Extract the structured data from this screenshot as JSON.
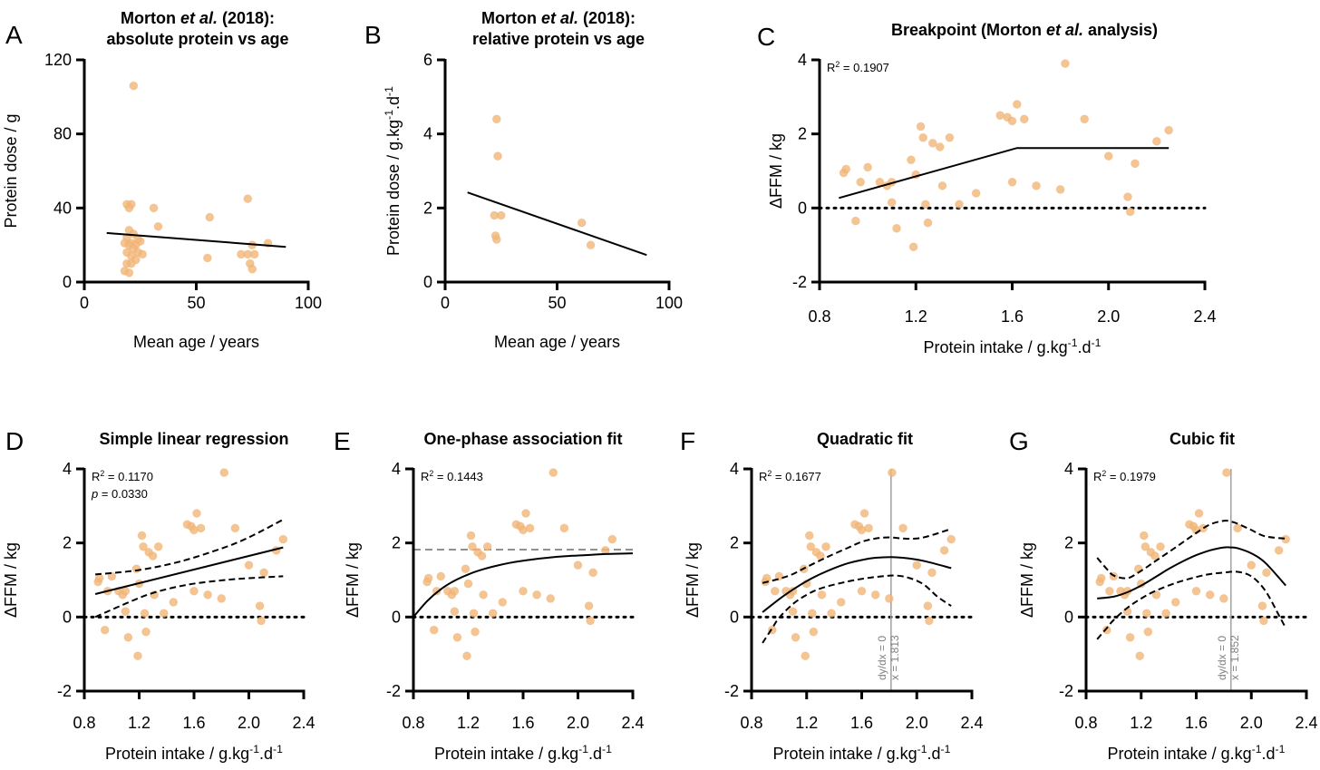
{
  "panels": [
    {
      "letter": "A",
      "title_lines": [
        [
          {
            "t": "Morton "
          },
          {
            "t": "et al.",
            "i": true
          },
          {
            "t": " (2018):"
          }
        ],
        [
          {
            "t": "absolute protein vs age"
          }
        ]
      ],
      "xlabel": [
        {
          "t": "Mean age / years"
        }
      ],
      "ylabel": [
        {
          "t": "Protein dose / g"
        }
      ],
      "annotations": []
    },
    {
      "letter": "B",
      "title_lines": [
        [
          {
            "t": "Morton "
          },
          {
            "t": "et al.",
            "i": true
          },
          {
            "t": " (2018):"
          }
        ],
        [
          {
            "t": "relative protein vs age"
          }
        ]
      ],
      "xlabel": [
        {
          "t": "Mean age / years"
        }
      ],
      "ylabel": [
        {
          "t": "Protein dose / g.kg"
        },
        {
          "t": "-1",
          "sup": true
        },
        {
          "t": ".d"
        },
        {
          "t": "-1",
          "sup": true
        }
      ],
      "annotations": []
    },
    {
      "letter": "C",
      "title_lines": [
        [
          {
            "t": "Breakpoint (Morton "
          },
          {
            "t": "et al.",
            "i": true
          },
          {
            "t": " analysis)"
          }
        ]
      ],
      "xlabel": [
        {
          "t": "Protein intake / g.kg"
        },
        {
          "t": "-1",
          "sup": true
        },
        {
          "t": ".d"
        },
        {
          "t": "-1",
          "sup": true
        }
      ],
      "ylabel": [
        {
          "t": "ΔFFM / kg"
        }
      ],
      "annotations": [
        [
          {
            "t": "R"
          },
          {
            "t": "2",
            "sup": true
          },
          {
            "t": " = 0.1907"
          }
        ]
      ]
    },
    {
      "letter": "D",
      "title_lines": [
        [
          {
            "t": "Simple linear regression"
          }
        ]
      ],
      "xlabel": [
        {
          "t": "Protein intake / g.kg"
        },
        {
          "t": "-1",
          "sup": true
        },
        {
          "t": ".d"
        },
        {
          "t": "-1",
          "sup": true
        }
      ],
      "ylabel": [
        {
          "t": "ΔFFM / kg"
        }
      ],
      "annotations": [
        [
          {
            "t": "R"
          },
          {
            "t": "2",
            "sup": true
          },
          {
            "t": " = 0.1170"
          }
        ],
        [
          {
            "t": "p",
            "i": true
          },
          {
            "t": " = 0.0330"
          }
        ]
      ]
    },
    {
      "letter": "E",
      "title_lines": [
        [
          {
            "t": "One-phase association fit"
          }
        ]
      ],
      "xlabel": [
        {
          "t": "Protein intake / g.kg"
        },
        {
          "t": "-1",
          "sup": true
        },
        {
          "t": ".d"
        },
        {
          "t": "-1",
          "sup": true
        }
      ],
      "ylabel": [
        {
          "t": "ΔFFM / kg"
        }
      ],
      "annotations": [
        [
          {
            "t": "R"
          },
          {
            "t": "2",
            "sup": true
          },
          {
            "t": " = 0.1443"
          }
        ]
      ]
    },
    {
      "letter": "F",
      "title_lines": [
        [
          {
            "t": "Quadratic fit"
          }
        ]
      ],
      "xlabel": [
        {
          "t": "Protein intake / g.kg"
        },
        {
          "t": "-1",
          "sup": true
        },
        {
          "t": ".d"
        },
        {
          "t": "-1",
          "sup": true
        }
      ],
      "ylabel": [
        {
          "t": "ΔFFM / kg"
        }
      ],
      "annotations": [
        [
          {
            "t": "R"
          },
          {
            "t": "2",
            "sup": true
          },
          {
            "t": " = 0.1677"
          }
        ]
      ],
      "vline_labels": [
        "dy/dx = 0",
        "x = 1.813"
      ]
    },
    {
      "letter": "G",
      "title_lines": [
        [
          {
            "t": "Cubic fit"
          }
        ]
      ],
      "xlabel": [
        {
          "t": "Protein intake / g.kg"
        },
        {
          "t": "-1",
          "sup": true
        },
        {
          "t": ".d"
        },
        {
          "t": "-1",
          "sup": true
        }
      ],
      "ylabel": [
        {
          "t": "ΔFFM / kg"
        }
      ],
      "annotations": [
        [
          {
            "t": "R"
          },
          {
            "t": "2",
            "sup": true
          },
          {
            "t": " = 0.1979"
          }
        ]
      ],
      "vline_labels": [
        "dy/dx = 0",
        "x = 1.852"
      ]
    }
  ],
  "chart_data": [
    {
      "panel": "A",
      "type": "scatter",
      "xlim": [
        0,
        100
      ],
      "xticks": [
        0,
        50,
        100
      ],
      "ylim": [
        0,
        120
      ],
      "yticks": [
        0,
        40,
        80,
        120
      ],
      "points": [
        [
          22,
          106
        ],
        [
          19,
          42
        ],
        [
          21,
          42
        ],
        [
          20,
          40
        ],
        [
          31,
          40
        ],
        [
          33,
          30
        ],
        [
          56,
          35
        ],
        [
          73,
          45
        ],
        [
          20,
          28
        ],
        [
          22,
          26
        ],
        [
          19,
          24
        ],
        [
          24,
          23
        ],
        [
          18,
          21
        ],
        [
          21,
          21
        ],
        [
          23,
          20
        ],
        [
          25,
          22
        ],
        [
          20,
          20
        ],
        [
          22,
          18
        ],
        [
          19,
          16
        ],
        [
          24,
          16
        ],
        [
          26,
          15
        ],
        [
          21,
          14
        ],
        [
          23,
          12
        ],
        [
          19,
          10
        ],
        [
          21,
          10
        ],
        [
          18,
          6
        ],
        [
          20,
          5
        ],
        [
          55,
          13
        ],
        [
          70,
          15
        ],
        [
          73,
          15
        ],
        [
          75,
          20
        ],
        [
          76,
          15
        ],
        [
          82,
          21
        ],
        [
          74,
          10
        ],
        [
          75,
          7
        ]
      ],
      "fit": {
        "kind": "linear",
        "x": [
          10,
          90
        ],
        "y": [
          26.5,
          19
        ]
      }
    },
    {
      "panel": "B",
      "type": "scatter",
      "xlim": [
        0,
        100
      ],
      "xticks": [
        0,
        50,
        100
      ],
      "ylim": [
        0,
        6
      ],
      "yticks": [
        0,
        2,
        4,
        6
      ],
      "points": [
        [
          23,
          4.4
        ],
        [
          23.5,
          3.4
        ],
        [
          22,
          1.8
        ],
        [
          25,
          1.8
        ],
        [
          22.5,
          1.25
        ],
        [
          23,
          1.15
        ],
        [
          61,
          1.6
        ],
        [
          65,
          1.0
        ]
      ],
      "fit": {
        "kind": "linear",
        "x": [
          10,
          90
        ],
        "y": [
          2.42,
          0.73
        ]
      }
    },
    {
      "panel": "C",
      "type": "scatter",
      "xlim": [
        0.8,
        2.4
      ],
      "xticks": [
        0.8,
        1.2,
        1.6,
        2.0,
        2.4
      ],
      "ylim": [
        -2,
        4
      ],
      "yticks": [
        -2,
        0,
        2,
        4
      ],
      "zero_line": true,
      "fit": {
        "kind": "breakpoint",
        "x": [
          0.88,
          1.62,
          2.25
        ],
        "y": [
          0.27,
          1.62,
          1.62
        ]
      },
      "r2": 0.1907
    },
    {
      "panel": "D",
      "type": "scatter",
      "xlim": [
        0.8,
        2.4
      ],
      "xticks": [
        0.8,
        1.2,
        1.6,
        2.0,
        2.4
      ],
      "ylim": [
        -2,
        4
      ],
      "yticks": [
        -2,
        0,
        2,
        4
      ],
      "zero_line": true,
      "fit": {
        "kind": "linear",
        "x": [
          0.88,
          2.25
        ],
        "y": [
          0.62,
          1.88
        ]
      },
      "ci_upper": {
        "x": [
          0.88,
          1.2,
          1.5,
          1.8,
          2.0,
          2.25
        ],
        "y": [
          1.15,
          1.27,
          1.5,
          1.85,
          2.15,
          2.63
        ]
      },
      "ci_lower": {
        "x": [
          0.88,
          1.1,
          1.3,
          1.55,
          1.8,
          2.0,
          2.25
        ],
        "y": [
          0.0,
          0.36,
          0.65,
          0.87,
          0.99,
          1.05,
          1.1
        ]
      },
      "r2": 0.117,
      "p": 0.033
    },
    {
      "panel": "E",
      "type": "scatter",
      "xlim": [
        0.8,
        2.4
      ],
      "xticks": [
        0.8,
        1.2,
        1.6,
        2.0,
        2.4
      ],
      "ylim": [
        -2,
        4
      ],
      "yticks": [
        -2,
        0,
        2,
        4
      ],
      "zero_line": true,
      "plateau": 1.82,
      "fit": {
        "kind": "one-phase",
        "x": [
          0.8,
          0.9,
          1.0,
          1.1,
          1.2,
          1.3,
          1.4,
          1.5,
          1.6,
          1.7,
          1.8,
          1.9,
          2.0,
          2.1,
          2.2,
          2.3,
          2.4
        ],
        "y": [
          0.0,
          0.43,
          0.75,
          0.98,
          1.15,
          1.28,
          1.38,
          1.46,
          1.52,
          1.57,
          1.61,
          1.64,
          1.66,
          1.68,
          1.7,
          1.71,
          1.72
        ]
      },
      "r2": 0.1443
    },
    {
      "panel": "F",
      "type": "scatter",
      "xlim": [
        0.8,
        2.4
      ],
      "xticks": [
        0.8,
        1.2,
        1.6,
        2.0,
        2.4
      ],
      "ylim": [
        -2,
        4
      ],
      "yticks": [
        -2,
        0,
        2,
        4
      ],
      "zero_line": true,
      "vline": 1.813,
      "fit": {
        "kind": "quadratic",
        "x": [
          0.88,
          1.0,
          1.1,
          1.2,
          1.3,
          1.4,
          1.5,
          1.6,
          1.7,
          1.813,
          1.9,
          2.0,
          2.1,
          2.25
        ],
        "y": [
          0.13,
          0.48,
          0.74,
          0.97,
          1.16,
          1.32,
          1.45,
          1.54,
          1.6,
          1.62,
          1.6,
          1.55,
          1.47,
          1.32
        ]
      },
      "ci_upper": {
        "x": [
          0.88,
          1.0,
          1.1,
          1.2,
          1.35,
          1.5,
          1.6,
          1.7,
          1.8,
          1.9,
          2.0,
          2.1,
          2.25
        ],
        "y": [
          0.92,
          1.03,
          1.16,
          1.35,
          1.62,
          1.87,
          2.03,
          2.12,
          2.15,
          2.12,
          2.12,
          2.2,
          2.38
        ]
      },
      "ci_lower": {
        "x": [
          0.88,
          0.95,
          1.0,
          1.1,
          1.2,
          1.3,
          1.45,
          1.6,
          1.75,
          1.85,
          1.95,
          2.05,
          2.15,
          2.25
        ],
        "y": [
          -0.7,
          -0.3,
          -0.02,
          0.35,
          0.6,
          0.77,
          0.92,
          1.03,
          1.1,
          1.12,
          1.05,
          0.88,
          0.55,
          0.3
        ]
      },
      "r2": 0.1677
    },
    {
      "panel": "G",
      "type": "scatter",
      "xlim": [
        0.8,
        2.4
      ],
      "xticks": [
        0.8,
        1.2,
        1.6,
        2.0,
        2.4
      ],
      "ylim": [
        -2,
        4
      ],
      "yticks": [
        -2,
        0,
        2,
        4
      ],
      "zero_line": true,
      "vline": 1.852,
      "fit": {
        "kind": "cubic",
        "x": [
          0.88,
          1.0,
          1.1,
          1.2,
          1.3,
          1.4,
          1.5,
          1.6,
          1.7,
          1.8,
          1.852,
          1.9,
          2.0,
          2.1,
          2.25
        ],
        "y": [
          0.5,
          0.55,
          0.67,
          0.85,
          1.07,
          1.3,
          1.5,
          1.67,
          1.8,
          1.88,
          1.88,
          1.86,
          1.72,
          1.47,
          0.85
        ]
      },
      "ci_upper": {
        "x": [
          0.88,
          0.95,
          1.0,
          1.1,
          1.2,
          1.3,
          1.45,
          1.6,
          1.7,
          1.8,
          1.85,
          1.9,
          2.0,
          2.1,
          2.25
        ],
        "y": [
          1.6,
          1.3,
          1.12,
          1.05,
          1.25,
          1.5,
          1.88,
          2.27,
          2.5,
          2.6,
          2.58,
          2.52,
          2.35,
          2.18,
          2.12
        ]
      },
      "ci_lower": {
        "x": [
          0.88,
          0.95,
          1.0,
          1.1,
          1.2,
          1.3,
          1.45,
          1.6,
          1.7,
          1.8,
          1.9,
          2.0,
          2.1,
          2.2,
          2.25
        ],
        "y": [
          -0.6,
          -0.3,
          -0.08,
          0.25,
          0.5,
          0.7,
          0.92,
          1.08,
          1.16,
          1.2,
          1.22,
          1.1,
          0.72,
          0.05,
          -0.3
        ]
      },
      "r2": 0.1979
    }
  ],
  "protein_points": [
    [
      0.9,
      0.95
    ],
    [
      0.91,
      1.05
    ],
    [
      0.95,
      -0.35
    ],
    [
      0.97,
      0.7
    ],
    [
      1.0,
      1.1
    ],
    [
      1.05,
      0.7
    ],
    [
      1.08,
      0.6
    ],
    [
      1.1,
      0.15
    ],
    [
      1.1,
      0.7
    ],
    [
      1.12,
      -0.55
    ],
    [
      1.18,
      1.3
    ],
    [
      1.19,
      -1.05
    ],
    [
      1.2,
      0.9
    ],
    [
      1.22,
      2.2
    ],
    [
      1.23,
      1.9
    ],
    [
      1.24,
      0.1
    ],
    [
      1.25,
      -0.4
    ],
    [
      1.27,
      1.75
    ],
    [
      1.3,
      1.65
    ],
    [
      1.31,
      0.6
    ],
    [
      1.34,
      1.9
    ],
    [
      1.38,
      0.1
    ],
    [
      1.45,
      0.4
    ],
    [
      1.55,
      2.5
    ],
    [
      1.58,
      2.45
    ],
    [
      1.6,
      2.35
    ],
    [
      1.6,
      0.7
    ],
    [
      1.62,
      2.8
    ],
    [
      1.65,
      2.4
    ],
    [
      1.7,
      0.6
    ],
    [
      1.8,
      0.5
    ],
    [
      1.82,
      3.9
    ],
    [
      1.9,
      2.4
    ],
    [
      2.0,
      1.4
    ],
    [
      2.08,
      0.3
    ],
    [
      2.09,
      -0.1
    ],
    [
      2.11,
      1.2
    ],
    [
      2.2,
      1.8
    ],
    [
      2.25,
      2.1
    ]
  ],
  "colors": {
    "point": "#f2b77a",
    "axis": "#000000",
    "fit": "#000000",
    "plateau": "#808080",
    "vline": "#a6a6a6"
  }
}
